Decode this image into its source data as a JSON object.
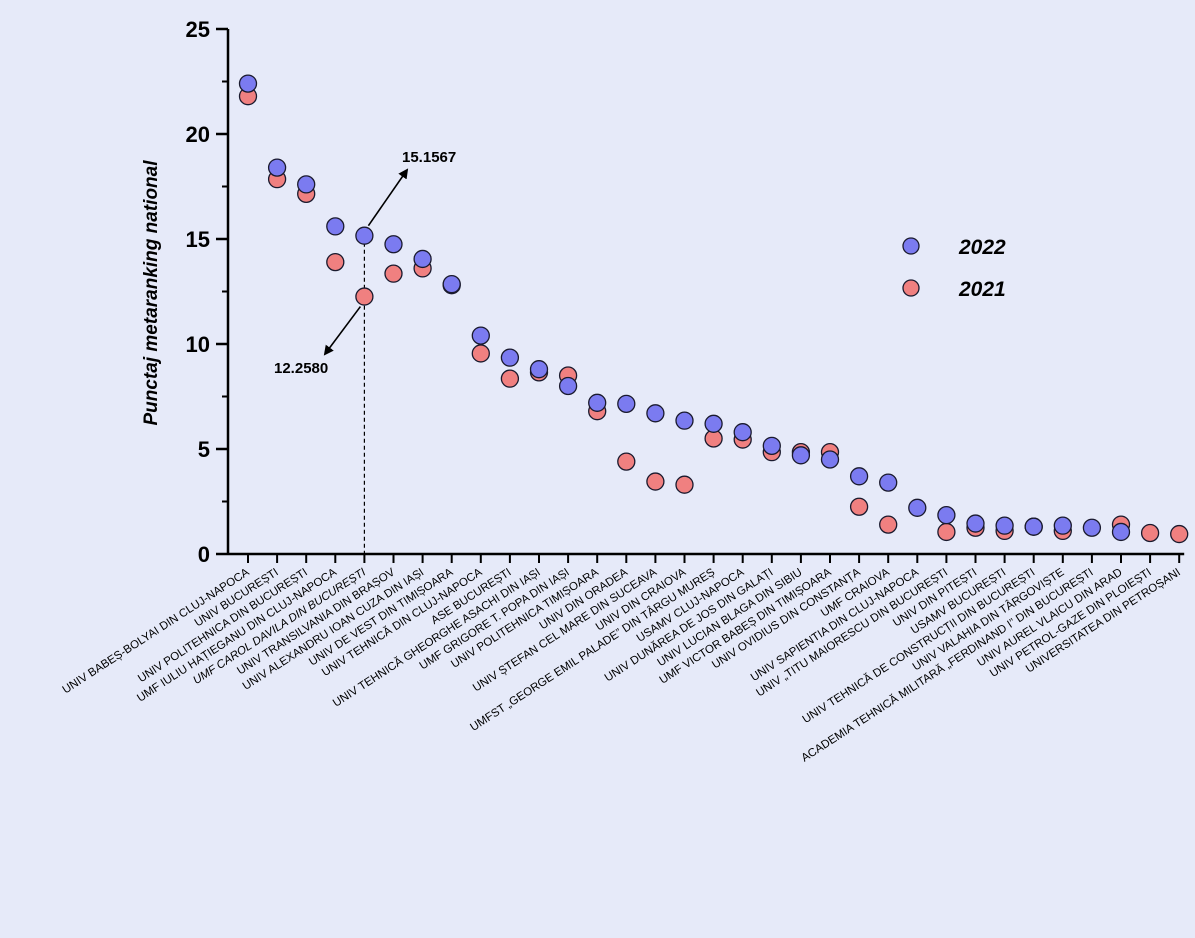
{
  "chart_data": {
    "type": "scatter",
    "ylabel": "Punctaj metaranking national",
    "ylim": [
      0,
      25
    ],
    "y_ticks": [
      "0",
      "5",
      "10",
      "15",
      "20",
      "25"
    ],
    "legend_position": "right",
    "categories": [
      "UNIV BABEȘ-BOLYAI DIN CLUJ-NAPOCA",
      "UNIV BUCUREȘTI",
      "UNIV POLITEHNICA DIN BUCUREȘTI",
      "UMF IULIU HAȚIEGANU DIN CLUJ-NAPOCA",
      "UMF CAROL DAVILA DIN BUCUREȘTI",
      "UNIV TRANSILVANIA DIN BRAȘOV",
      "UNIV ALEXANDRU IOAN CUZA DIN IAȘI",
      "UNIV DE VEST DIN TIMIȘOARA",
      "UNIV TEHNICĂ DIN CLUJ-NAPOCA",
      "ASE BUCUREȘTI",
      "UNIV TEHNICĂ GHEORGHE ASACHI DIN IAȘI",
      "UMF GRIGORE T. POPA DIN IAȘI",
      "UNIV POLITEHNICA TIMIȘOARA",
      "UNIV DIN ORADEA",
      "UNIV ȘTEFAN CEL MARE DIN SUCEAVA",
      "UNIV DIN CRAIOVA",
      "UMFST „GEORGE EMIL PALADE” DIN TÂRGU MUREȘ",
      "USAMV CLUJ-NAPOCA",
      "UNIV DUNĂREA DE JOS DIN GALAȚI",
      "UNIV LUCIAN BLAGA DIN SIBIU",
      "UMF VICTOR BABEȘ DIN TIMIȘOARA",
      "UNIV OVIDIUS DIN CONSTANȚA",
      "UMF CRAIOVA",
      "UNIV SAPIENTIA DIN CLUJ-NAPOCA",
      "UNIV „TITU MAIORESCU DIN BUCUREȘTI",
      "UNIV DIN PITEȘTI",
      "USAMV BUCUREȘTI",
      "UNIV TEHNICĂ DE CONSTRUCȚII DIN BUCUREȘTI",
      "UNIV VALAHIA DIN TÂRGOVIȘTE",
      "ACADEMIA TEHNICĂ MILITARĂ „FERDINAND I” DIN BUCUREȘTI",
      "UNIV AUREL VLAICU DIN ARAD",
      "UNIV PETROL-GAZE DIN PLOIEȘTI",
      "UNIVERSITATEA DIN PETROȘANI"
    ],
    "series": [
      {
        "name": "2022",
        "color": "#7b7bf0",
        "values": [
          22.4,
          18.4,
          17.6,
          15.6,
          15.1567,
          14.75,
          14.05,
          12.85,
          10.4,
          9.35,
          8.8,
          8.0,
          7.2,
          7.15,
          6.7,
          6.35,
          6.2,
          5.8,
          5.15,
          4.7,
          4.5,
          3.7,
          3.4,
          2.2,
          1.85,
          1.45,
          1.35,
          1.3,
          1.35,
          1.25,
          1.05,
          null,
          null
        ]
      },
      {
        "name": "2021",
        "color": "#f08080",
        "values": [
          21.8,
          17.85,
          17.15,
          13.9,
          12.258,
          13.35,
          13.6,
          12.8,
          9.55,
          8.35,
          8.65,
          8.5,
          6.8,
          4.4,
          3.45,
          3.3,
          5.5,
          5.45,
          4.85,
          4.85,
          4.85,
          2.25,
          1.4,
          null,
          1.05,
          1.25,
          1.1,
          1.3,
          1.1,
          null,
          1.4,
          1.0,
          0.95
        ]
      }
    ],
    "annotations": [
      {
        "text": "15.1567",
        "category_index": 4,
        "value": 15.1567
      },
      {
        "text": "12.2580",
        "category_index": 4,
        "value": 12.258
      }
    ],
    "italic_category_index": 4
  }
}
